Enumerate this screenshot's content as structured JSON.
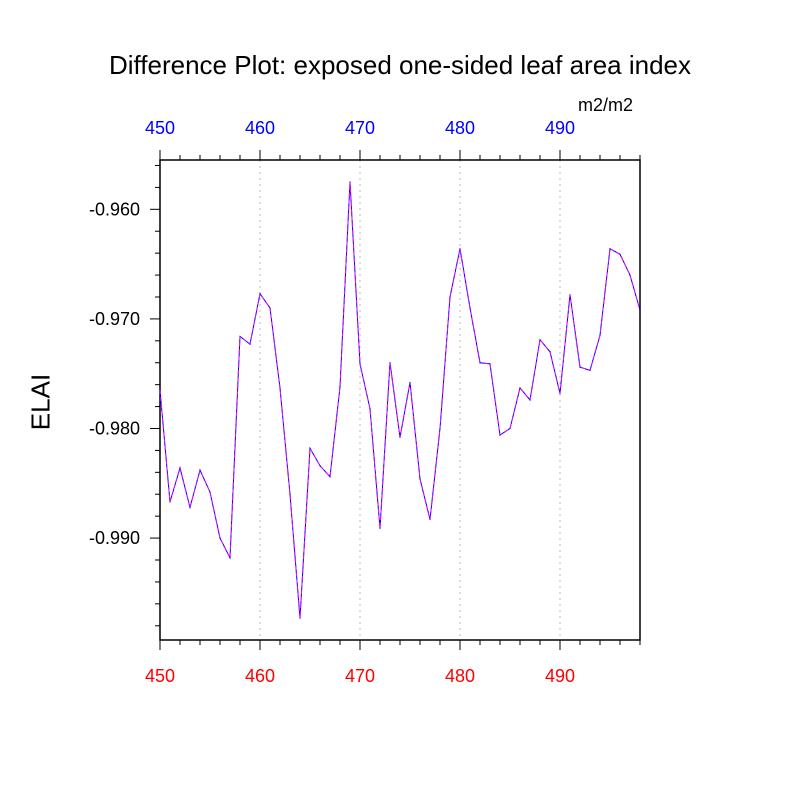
{
  "chart_data": {
    "type": "line",
    "title": "Difference Plot: exposed one-sided leaf area index",
    "units": "m2/m2",
    "ylabel": "ELAI",
    "xlabel": "",
    "xlim": [
      450,
      498
    ],
    "ylim": [
      -0.9993,
      -0.9555
    ],
    "x_ticks": [
      "450",
      "460",
      "470",
      "480",
      "490"
    ],
    "y_ticks": [
      "-0.960",
      "-0.970",
      "-0.980",
      "-0.990"
    ],
    "top_tick_color": "#0000ff",
    "bottom_tick_color": "#ff0000",
    "grid": "vertical dotted",
    "series": [
      {
        "line_color": "#0000ff",
        "dash_color": "#ff00ff",
        "x": [
          450,
          451,
          452,
          453,
          454,
          455,
          456,
          457,
          458,
          459,
          460,
          461,
          462,
          463,
          464,
          465,
          466,
          467,
          468,
          469,
          470,
          471,
          472,
          473,
          474,
          475,
          476,
          477,
          478,
          479,
          480,
          481,
          482,
          483,
          484,
          485,
          486,
          487,
          488,
          489,
          490,
          491,
          492,
          493,
          494,
          495,
          496,
          497,
          498
        ],
        "values": [
          -0.9765,
          -0.9867,
          -0.9836,
          -0.9872,
          -0.9838,
          -0.9858,
          -0.99,
          -0.9918,
          -0.9716,
          -0.9723,
          -0.9677,
          -0.969,
          -0.9763,
          -0.986,
          -0.9973,
          -0.9818,
          -0.9834,
          -0.9844,
          -0.9762,
          -0.9575,
          -0.9741,
          -0.9782,
          -0.9891,
          -0.974,
          -0.9808,
          -0.9758,
          -0.9846,
          -0.9883,
          -0.98,
          -0.968,
          -0.9636,
          -0.969,
          -0.974,
          -0.9741,
          -0.9806,
          -0.98,
          -0.9763,
          -0.9774,
          -0.9719,
          -0.973,
          -0.9768,
          -0.9678,
          -0.9744,
          -0.9747,
          -0.9715,
          -0.9636,
          -0.9641,
          -0.966,
          -0.9692
        ]
      }
    ]
  }
}
